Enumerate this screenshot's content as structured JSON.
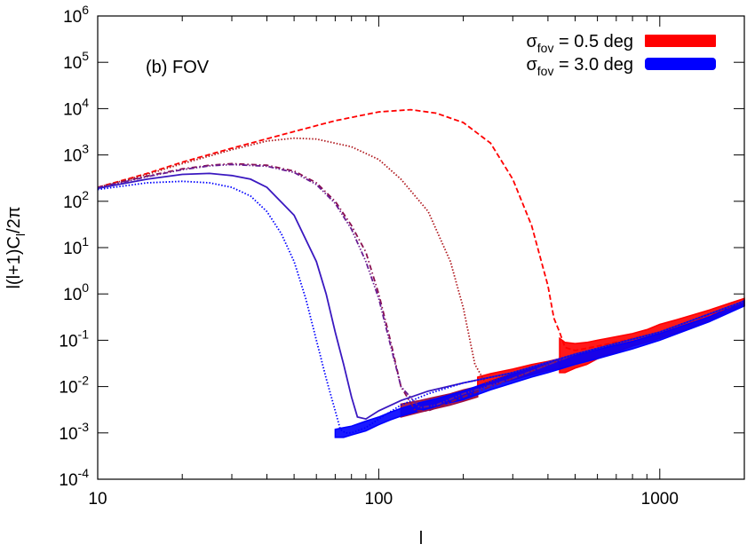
{
  "chart_data": {
    "type": "line",
    "title": "",
    "xlabel": "l",
    "ylabel": "l(l+1)C_l/2π",
    "x_scale": "log",
    "y_scale": "log",
    "xlim": [
      10,
      2000
    ],
    "ylim": [
      0.0001,
      1000000
    ],
    "x_ticks": [
      {
        "value": 10,
        "label": "10"
      },
      {
        "value": 100,
        "label": "100"
      },
      {
        "value": 1000,
        "label": "1000"
      }
    ],
    "y_ticks": [
      {
        "value": 0.0001,
        "base": "10",
        "exp": "-4"
      },
      {
        "value": 0.001,
        "base": "10",
        "exp": "-3"
      },
      {
        "value": 0.01,
        "base": "10",
        "exp": "-2"
      },
      {
        "value": 0.1,
        "base": "10",
        "exp": "-1"
      },
      {
        "value": 1,
        "base": "10",
        "exp": "0"
      },
      {
        "value": 10,
        "base": "10",
        "exp": "1"
      },
      {
        "value": 100,
        "base": "10",
        "exp": "2"
      },
      {
        "value": 1000,
        "base": "10",
        "exp": "3"
      },
      {
        "value": 10000,
        "base": "10",
        "exp": "4"
      },
      {
        "value": 100000,
        "base": "10",
        "exp": "5"
      },
      {
        "value": 1000000,
        "base": "10",
        "exp": "6"
      }
    ],
    "annotation": "(b) FOV",
    "legend": {
      "position": "top-right",
      "entries": [
        {
          "sym": "σ",
          "sub": "fov",
          "text": " = 0.5 deg",
          "color": "#ff0000"
        },
        {
          "sym": "σ",
          "sub": "fov",
          "text": " = 3.0 deg",
          "color": "#0000ff"
        }
      ]
    },
    "series": [
      {
        "color": "#ff0000",
        "style": "dashed",
        "x": [
          10,
          15,
          20,
          30,
          50,
          70,
          100,
          130,
          160,
          200,
          250,
          300,
          350,
          400,
          420,
          440,
          460,
          500,
          700,
          1000,
          1500,
          2000
        ],
        "y": [
          200,
          400,
          700,
          1400,
          3200,
          5500,
          8500,
          9500,
          8000,
          5000,
          1800,
          300,
          30,
          1.5,
          0.3,
          0.15,
          0.07,
          0.06,
          0.09,
          0.15,
          0.35,
          0.7
        ]
      },
      {
        "color": "#b0181e",
        "style": "dotted",
        "x": [
          10,
          15,
          20,
          30,
          40,
          50,
          60,
          80,
          100,
          120,
          150,
          180,
          200,
          220,
          240,
          300,
          500,
          1000,
          2000
        ],
        "y": [
          200,
          380,
          650,
          1300,
          2000,
          2300,
          2200,
          1500,
          800,
          300,
          60,
          5,
          0.5,
          0.03,
          0.012,
          0.02,
          0.05,
          0.15,
          0.7
        ]
      },
      {
        "color": "#8a1050",
        "style": "dashdot",
        "x": [
          10,
          15,
          20,
          25,
          30,
          40,
          50,
          60,
          70,
          80,
          90,
          100,
          110,
          120,
          135,
          150,
          200,
          300,
          500,
          1000,
          2000
        ],
        "y": [
          200,
          350,
          500,
          600,
          650,
          600,
          450,
          250,
          100,
          30,
          8,
          1,
          0.1,
          0.01,
          0.003,
          0.003,
          0.006,
          0.015,
          0.05,
          0.15,
          0.7
        ]
      },
      {
        "color": "#6a1c92",
        "style": "dashdotdot",
        "x": [
          10,
          15,
          20,
          25,
          30,
          40,
          50,
          60,
          70,
          80,
          90,
          100,
          110,
          120,
          140,
          160,
          200,
          300,
          500,
          1000,
          2000
        ],
        "y": [
          195,
          340,
          480,
          580,
          620,
          570,
          420,
          230,
          90,
          25,
          5,
          0.8,
          0.08,
          0.01,
          0.0035,
          0.004,
          0.007,
          0.015,
          0.05,
          0.15,
          0.7
        ]
      },
      {
        "color": "#3a18c0",
        "style": "solid",
        "x": [
          10,
          15,
          20,
          25,
          30,
          35,
          40,
          50,
          60,
          65,
          70,
          75,
          80,
          84,
          90,
          100,
          120,
          150,
          200,
          300,
          500,
          1000,
          2000
        ],
        "y": [
          190,
          300,
          380,
          400,
          360,
          300,
          200,
          50,
          5,
          1,
          0.15,
          0.03,
          0.006,
          0.0022,
          0.002,
          0.003,
          0.005,
          0.008,
          0.012,
          0.02,
          0.05,
          0.15,
          0.7
        ]
      },
      {
        "color": "#0000ff",
        "style": "dotted",
        "x": [
          10,
          15,
          20,
          25,
          30,
          35,
          40,
          45,
          50,
          55,
          60,
          65,
          70,
          73,
          76,
          80,
          90,
          100,
          120,
          150,
          200,
          300,
          500,
          1000,
          2000
        ],
        "y": [
          180,
          250,
          270,
          250,
          200,
          130,
          60,
          20,
          5,
          0.8,
          0.1,
          0.015,
          0.003,
          0.0012,
          0.001,
          0.001,
          0.0013,
          0.002,
          0.004,
          0.007,
          0.012,
          0.02,
          0.05,
          0.15,
          0.7
        ]
      }
    ],
    "noise_bands": [
      {
        "color": "#ff0000",
        "x": [
          440,
          460,
          500,
          550,
          600,
          700,
          800,
          900,
          1000,
          1200,
          1500,
          1800,
          2000
        ],
        "lower": [
          0.02,
          0.02,
          0.025,
          0.03,
          0.04,
          0.055,
          0.075,
          0.09,
          0.11,
          0.16,
          0.27,
          0.45,
          0.55
        ],
        "upper": [
          0.11,
          0.09,
          0.085,
          0.09,
          0.1,
          0.12,
          0.14,
          0.17,
          0.22,
          0.3,
          0.45,
          0.65,
          0.8
        ]
      },
      {
        "color": "#ff0000",
        "x": [
          225,
          250,
          300,
          350,
          400,
          440
        ],
        "lower": [
          0.009,
          0.011,
          0.014,
          0.018,
          0.022,
          0.025
        ],
        "upper": [
          0.016,
          0.019,
          0.024,
          0.03,
          0.035,
          0.04
        ]
      },
      {
        "color": "#a01040",
        "x": [
          120,
          140,
          160,
          180,
          200,
          225
        ],
        "lower": [
          0.0022,
          0.0028,
          0.0034,
          0.004,
          0.0048,
          0.006
        ],
        "upper": [
          0.0042,
          0.005,
          0.006,
          0.007,
          0.0085,
          0.01
        ]
      },
      {
        "color": "#0000ff",
        "x": [
          70,
          75,
          80,
          90,
          100,
          110,
          120,
          140,
          160,
          180,
          200,
          250,
          300,
          350,
          400,
          500,
          600,
          800,
          1000,
          1500,
          2000
        ],
        "lower": [
          0.0008,
          0.0008,
          0.0009,
          0.0011,
          0.0015,
          0.0019,
          0.0023,
          0.003,
          0.0037,
          0.0045,
          0.0052,
          0.0085,
          0.012,
          0.016,
          0.02,
          0.03,
          0.04,
          0.065,
          0.1,
          0.25,
          0.55
        ],
        "upper": [
          0.0012,
          0.0013,
          0.0014,
          0.0018,
          0.0022,
          0.0028,
          0.0034,
          0.0045,
          0.0055,
          0.0067,
          0.008,
          0.013,
          0.019,
          0.026,
          0.033,
          0.048,
          0.063,
          0.095,
          0.14,
          0.32,
          0.72
        ]
      }
    ]
  }
}
